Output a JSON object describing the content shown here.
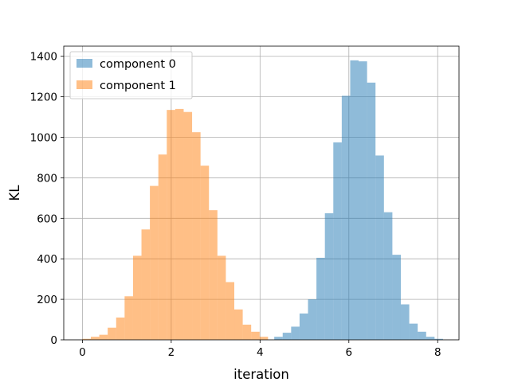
{
  "chart_data": {
    "type": "bar",
    "title": "",
    "xlabel": "iteration",
    "ylabel": "KL",
    "xlim": [
      -0.42,
      8.48
    ],
    "ylim": [
      0,
      1450
    ],
    "xticks": [
      0,
      2,
      4,
      6,
      8
    ],
    "yticks": [
      0,
      200,
      400,
      600,
      800,
      1000,
      1200,
      1400
    ],
    "grid": true,
    "legend_position": "top-left",
    "series": [
      {
        "name": "component 0",
        "color": "#1f77b4",
        "alpha": 0.5,
        "bin_start": 4.32,
        "bin_width": 0.19,
        "values": [
          15,
          35,
          65,
          130,
          200,
          405,
          625,
          975,
          1205,
          1380,
          1375,
          1270,
          910,
          630,
          420,
          175,
          80,
          40,
          15,
          5
        ]
      },
      {
        "name": "component 1",
        "color": "#ff7f0e",
        "alpha": 0.5,
        "bin_start": 0.0,
        "bin_width": 0.19,
        "values": [
          5,
          15,
          25,
          60,
          110,
          215,
          415,
          545,
          760,
          915,
          1135,
          1140,
          1125,
          1025,
          860,
          640,
          415,
          285,
          150,
          75,
          40,
          15
        ]
      }
    ]
  }
}
